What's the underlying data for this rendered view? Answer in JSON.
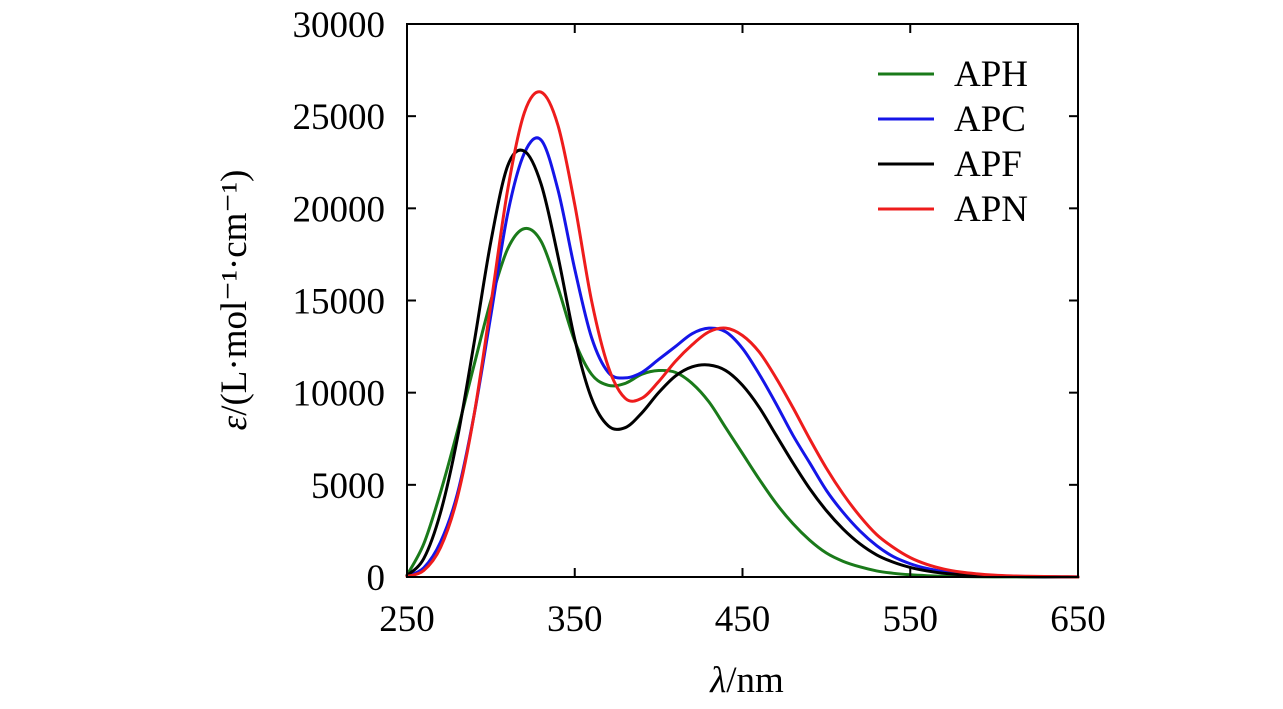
{
  "chart_data": {
    "type": "line",
    "title": "",
    "xlabel_symbol": "λ",
    "xlabel_unit": "/nm",
    "ylabel_symbol": "ε",
    "ylabel_unit": "/(L·mol⁻¹·cm⁻¹)",
    "xlim": [
      250,
      650
    ],
    "ylim": [
      0,
      30000
    ],
    "xticks": [
      250,
      350,
      450,
      550,
      650
    ],
    "xtick_labels": [
      "250",
      "350",
      "450",
      "550",
      "650"
    ],
    "yticks": [
      0,
      5000,
      10000,
      15000,
      20000,
      25000,
      30000
    ],
    "ytick_labels": [
      "0",
      "5000",
      "10000",
      "15000",
      "20000",
      "25000",
      "30000"
    ],
    "legend_position": "top-right",
    "x": [
      250,
      260,
      270,
      280,
      290,
      300,
      310,
      320,
      330,
      340,
      350,
      360,
      370,
      380,
      390,
      400,
      410,
      420,
      430,
      440,
      450,
      460,
      470,
      480,
      490,
      500,
      510,
      520,
      530,
      540,
      550,
      560,
      570,
      580,
      590,
      600,
      610,
      620,
      630,
      640,
      650
    ],
    "series": [
      {
        "name": "APH",
        "color": "#1a7a1a",
        "values": [
          100,
          1800,
          4600,
          7900,
          11500,
          15000,
          17800,
          18900,
          18200,
          15700,
          12800,
          11000,
          10400,
          10500,
          11000,
          11200,
          11100,
          10500,
          9500,
          8100,
          6700,
          5300,
          4000,
          2900,
          2000,
          1300,
          850,
          550,
          330,
          200,
          120,
          70,
          40,
          25,
          15,
          10,
          5,
          3,
          2,
          1,
          0
        ]
      },
      {
        "name": "APC",
        "color": "#1515e8",
        "values": [
          50,
          500,
          1900,
          4500,
          8800,
          14200,
          19700,
          23000,
          23700,
          21000,
          16700,
          13000,
          11100,
          10800,
          11100,
          11800,
          12500,
          13200,
          13500,
          13300,
          12400,
          11000,
          9400,
          7700,
          6200,
          4700,
          3500,
          2500,
          1700,
          1100,
          720,
          460,
          290,
          180,
          110,
          70,
          40,
          25,
          15,
          10,
          5
        ]
      },
      {
        "name": "APF",
        "color": "#000000",
        "values": [
          80,
          1000,
          3500,
          7500,
          12700,
          18200,
          22300,
          23100,
          21300,
          17400,
          12900,
          9700,
          8200,
          8100,
          8900,
          10000,
          10900,
          11400,
          11500,
          11200,
          10400,
          9200,
          7700,
          6200,
          4800,
          3600,
          2600,
          1800,
          1200,
          800,
          520,
          330,
          200,
          130,
          80,
          50,
          30,
          20,
          10,
          5,
          2
        ]
      },
      {
        "name": "APN",
        "color": "#ee1c1c",
        "values": [
          30,
          350,
          1600,
          4300,
          8800,
          14800,
          21000,
          25200,
          26300,
          24500,
          20200,
          15000,
          11400,
          9700,
          9700,
          10600,
          11700,
          12600,
          13300,
          13500,
          13100,
          12200,
          10800,
          9200,
          7500,
          5900,
          4500,
          3300,
          2300,
          1600,
          1050,
          680,
          430,
          270,
          170,
          100,
          60,
          40,
          25,
          15,
          10
        ]
      }
    ]
  }
}
